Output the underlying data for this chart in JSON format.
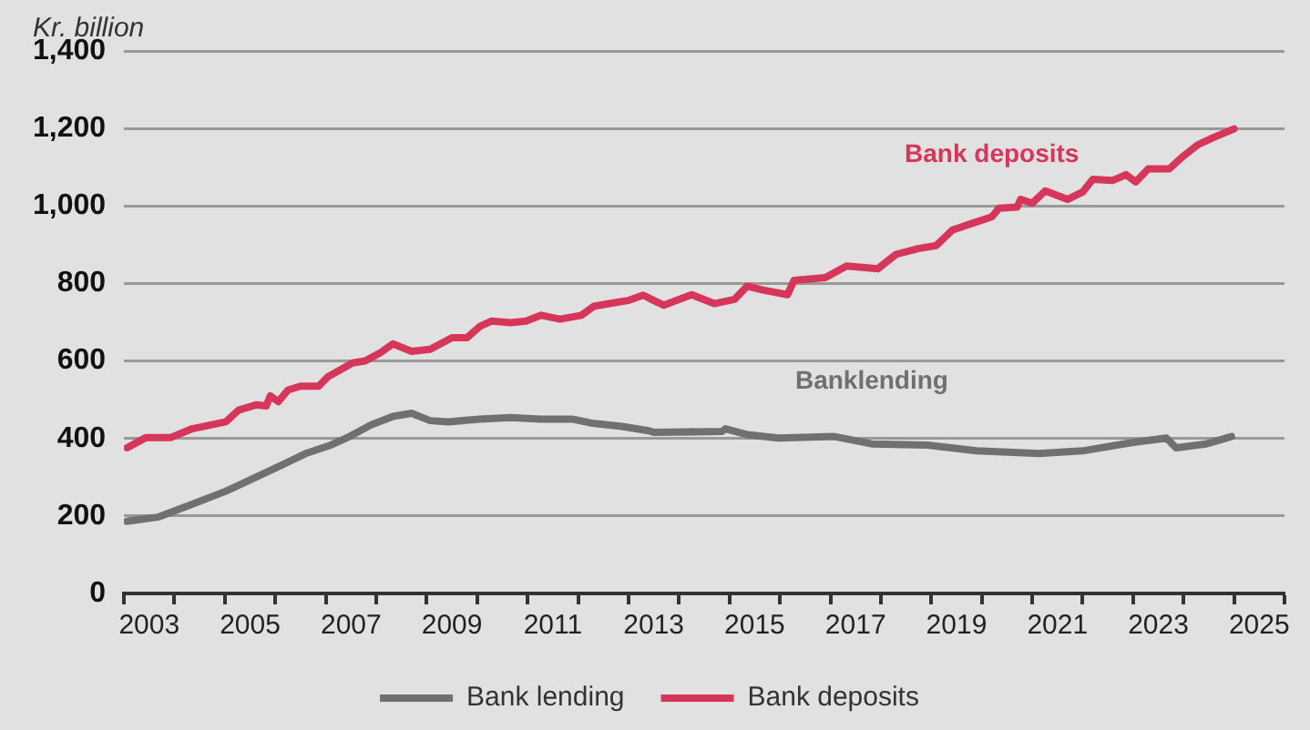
{
  "chart_data": {
    "type": "line",
    "ylabel": "Kr. billion",
    "xlim": [
      2003,
      2026
    ],
    "xticks": [
      {
        "value": 2003,
        "label": null
      },
      {
        "value": 2003.5,
        "label": "2003"
      },
      {
        "value": 2004,
        "label": null
      },
      {
        "value": 2005,
        "label": null
      },
      {
        "value": 2005.5,
        "label": "2005"
      },
      {
        "value": 2006,
        "label": null
      },
      {
        "value": 2007,
        "label": null
      },
      {
        "value": 2007.5,
        "label": "2007"
      },
      {
        "value": 2008,
        "label": null
      },
      {
        "value": 2009,
        "label": null
      },
      {
        "value": 2009.5,
        "label": "2009"
      },
      {
        "value": 2010,
        "label": null
      },
      {
        "value": 2011,
        "label": null
      },
      {
        "value": 2011.5,
        "label": "2011"
      },
      {
        "value": 2012,
        "label": null
      },
      {
        "value": 2013,
        "label": null
      },
      {
        "value": 2013.5,
        "label": "2013"
      },
      {
        "value": 2014,
        "label": null
      },
      {
        "value": 2015,
        "label": null
      },
      {
        "value": 2015.5,
        "label": "2015"
      },
      {
        "value": 2016,
        "label": null
      },
      {
        "value": 2017,
        "label": null
      },
      {
        "value": 2017.5,
        "label": "2017"
      },
      {
        "value": 2018,
        "label": null
      },
      {
        "value": 2019,
        "label": null
      },
      {
        "value": 2019.5,
        "label": "2019"
      },
      {
        "value": 2020,
        "label": null
      },
      {
        "value": 2021,
        "label": null
      },
      {
        "value": 2021.5,
        "label": "2021"
      },
      {
        "value": 2022,
        "label": null
      },
      {
        "value": 2023,
        "label": null
      },
      {
        "value": 2023.5,
        "label": "2023"
      },
      {
        "value": 2024,
        "label": null
      },
      {
        "value": 2025,
        "label": null
      },
      {
        "value": 2025.5,
        "label": "2025"
      },
      {
        "value": 2026,
        "label": null
      }
    ],
    "ylim": [
      0,
      1400
    ],
    "yticks": [
      {
        "value": 0,
        "label": "0"
      },
      {
        "value": 200,
        "label": "200"
      },
      {
        "value": 400,
        "label": "400"
      },
      {
        "value": 600,
        "label": "600"
      },
      {
        "value": 800,
        "label": "800"
      },
      {
        "value": 1000,
        "label": "1,000"
      },
      {
        "value": 1200,
        "label": "1,200"
      },
      {
        "value": 1400,
        "label": "1,400"
      }
    ],
    "grid": "y",
    "legend": "bottom",
    "marker": "none",
    "line_style": "solid",
    "series": [
      {
        "name": "Bank lending",
        "color": "#707070",
        "x": [
          2003.06,
          2003.67,
          2004.29,
          2005.02,
          2005.63,
          2006.12,
          2006.6,
          2007.1,
          2007.47,
          2007.9,
          2008.33,
          2008.7,
          2009.07,
          2009.43,
          2010.05,
          2010.66,
          2011.27,
          2011.88,
          2012.25,
          2012.87,
          2013.4,
          2013.5,
          2014.85,
          2014.92,
          2015.35,
          2015.97,
          2017.08,
          2017.82,
          2018.92,
          2019.9,
          2021.13,
          2022.0,
          2023.0,
          2023.66,
          2023.85,
          2024.45,
          2024.95
        ],
        "values": [
          186,
          197,
          227,
          264,
          301,
          331,
          361,
          383,
          405,
          435,
          457,
          465,
          446,
          443,
          450,
          454,
          450,
          450,
          440,
          431,
          420,
          416,
          418,
          425,
          410,
          401,
          405,
          386,
          383,
          368,
          361,
          368,
          390,
          401,
          376,
          386,
          405
        ]
      },
      {
        "name": "Bank deposits",
        "color": "#d6365a",
        "x": [
          2003.06,
          2003.43,
          2003.92,
          2004.35,
          2005.02,
          2005.27,
          2005.63,
          2005.82,
          2005.9,
          2006.06,
          2006.25,
          2006.5,
          2006.86,
          2007.04,
          2007.29,
          2007.53,
          2007.78,
          2008.09,
          2008.33,
          2008.7,
          2009.07,
          2009.5,
          2009.8,
          2010.05,
          2010.29,
          2010.66,
          2010.97,
          2011.27,
          2011.64,
          2012.07,
          2012.31,
          2012.62,
          2012.99,
          2013.29,
          2013.5,
          2013.7,
          2014.25,
          2014.7,
          2015.1,
          2015.35,
          2015.66,
          2016.15,
          2016.28,
          2016.9,
          2017.32,
          2017.94,
          2018.3,
          2018.74,
          2019.1,
          2019.42,
          2019.85,
          2020.2,
          2020.34,
          2020.7,
          2020.77,
          2021.0,
          2021.26,
          2021.7,
          2022.0,
          2022.2,
          2022.6,
          2022.86,
          2023.05,
          2023.3,
          2023.72,
          2023.97,
          2024.28,
          2024.58,
          2025.0
        ],
        "values": [
          376,
          402,
          402,
          425,
          443,
          473,
          487,
          484,
          510,
          495,
          525,
          535,
          535,
          559,
          577,
          595,
          600,
          622,
          644,
          625,
          630,
          660,
          660,
          689,
          703,
          699,
          703,
          718,
          708,
          718,
          741,
          748,
          756,
          770,
          756,
          744,
          771,
          748,
          759,
          793,
          783,
          771,
          808,
          815,
          845,
          838,
          875,
          890,
          898,
          938,
          957,
          972,
          994,
          997,
          1017,
          1007,
          1039,
          1017,
          1036,
          1069,
          1066,
          1081,
          1062,
          1096,
          1096,
          1126,
          1158,
          1176,
          1199
        ]
      }
    ],
    "annotations": [
      "Banklending",
      "Bank deposits"
    ]
  }
}
